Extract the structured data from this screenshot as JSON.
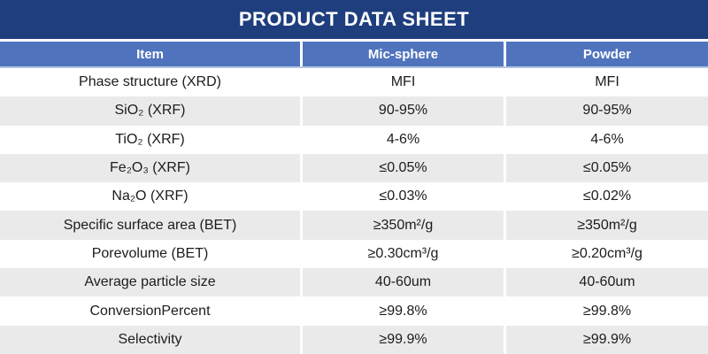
{
  "title": "PRODUCT DATA SHEET",
  "colors": {
    "title_bar_bg": "#1e3e7d",
    "header_bg": "#4f74bd",
    "header_bottom_border": "#b3c4e4",
    "stripe_bg": "#eaeaea",
    "row_bg": "#ffffff",
    "header_text": "#ffffff",
    "cell_text": "#1c1c1c"
  },
  "table": {
    "columns": [
      "Item",
      "Mic-sphere",
      "Powder"
    ],
    "rows": [
      {
        "item": "Phase structure (XRD)",
        "mic_sphere": "MFI",
        "powder": "MFI"
      },
      {
        "item": "SiO₂ (XRF)",
        "mic_sphere": "90-95%",
        "powder": "90-95%"
      },
      {
        "item": "TiO₂ (XRF)",
        "mic_sphere": "4-6%",
        "powder": "4-6%"
      },
      {
        "item": "Fe₂O₃ (XRF)",
        "mic_sphere": "≤0.05%",
        "powder": "≤0.05%"
      },
      {
        "item": "Na₂O (XRF)",
        "mic_sphere": "≤0.03%",
        "powder": "≤0.02%"
      },
      {
        "item": "Specific surface area (BET)",
        "mic_sphere": "≥350m²/g",
        "powder": "≥350m²/g"
      },
      {
        "item": "Porevolume (BET)",
        "mic_sphere": "≥0.30cm³/g",
        "powder": "≥0.20cm³/g"
      },
      {
        "item": "Average particle size",
        "mic_sphere": "40-60um",
        "powder": "40-60um"
      },
      {
        "item": "ConversionPercent",
        "mic_sphere": "≥99.8%",
        "powder": "≥99.8%"
      },
      {
        "item": "Selectivity",
        "mic_sphere": "≥99.9%",
        "powder": "≥99.9%"
      }
    ]
  }
}
